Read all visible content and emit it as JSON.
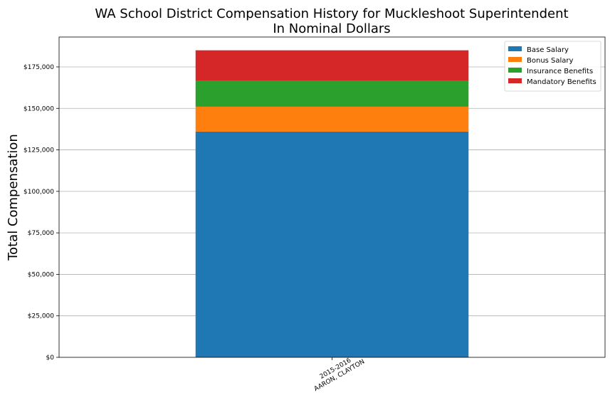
{
  "chart_data": {
    "type": "bar",
    "stacked": true,
    "title_lines": [
      "WA School District Compensation History for Muckleshoot Superintendent",
      "In Nominal Dollars"
    ],
    "xlabel": "",
    "ylabel": "Total Compensation",
    "categories": [
      [
        "2015-2016",
        "AARON, CLAYTON"
      ]
    ],
    "series": [
      {
        "name": "Base Salary",
        "color": "#1f77b4",
        "values": [
          136000
        ]
      },
      {
        "name": "Bonus Salary",
        "color": "#ff7f0e",
        "values": [
          15000
        ]
      },
      {
        "name": "Insurance Benefits",
        "color": "#2ca02c",
        "values": [
          15500
        ]
      },
      {
        "name": "Mandatory Benefits",
        "color": "#d62728",
        "values": [
          18500
        ]
      }
    ],
    "ylim": [
      0,
      193000
    ],
    "yticks": [
      {
        "value": 0,
        "label": "$0"
      },
      {
        "value": 25000,
        "label": "$25,000"
      },
      {
        "value": 50000,
        "label": "$50,000"
      },
      {
        "value": 75000,
        "label": "$75,000"
      },
      {
        "value": 100000,
        "label": "$100,000"
      },
      {
        "value": 125000,
        "label": "$125,000"
      },
      {
        "value": 150000,
        "label": "$150,000"
      },
      {
        "value": 175000,
        "label": "$175,000"
      }
    ],
    "grid": "horizontal",
    "legend_position": "top-right"
  }
}
